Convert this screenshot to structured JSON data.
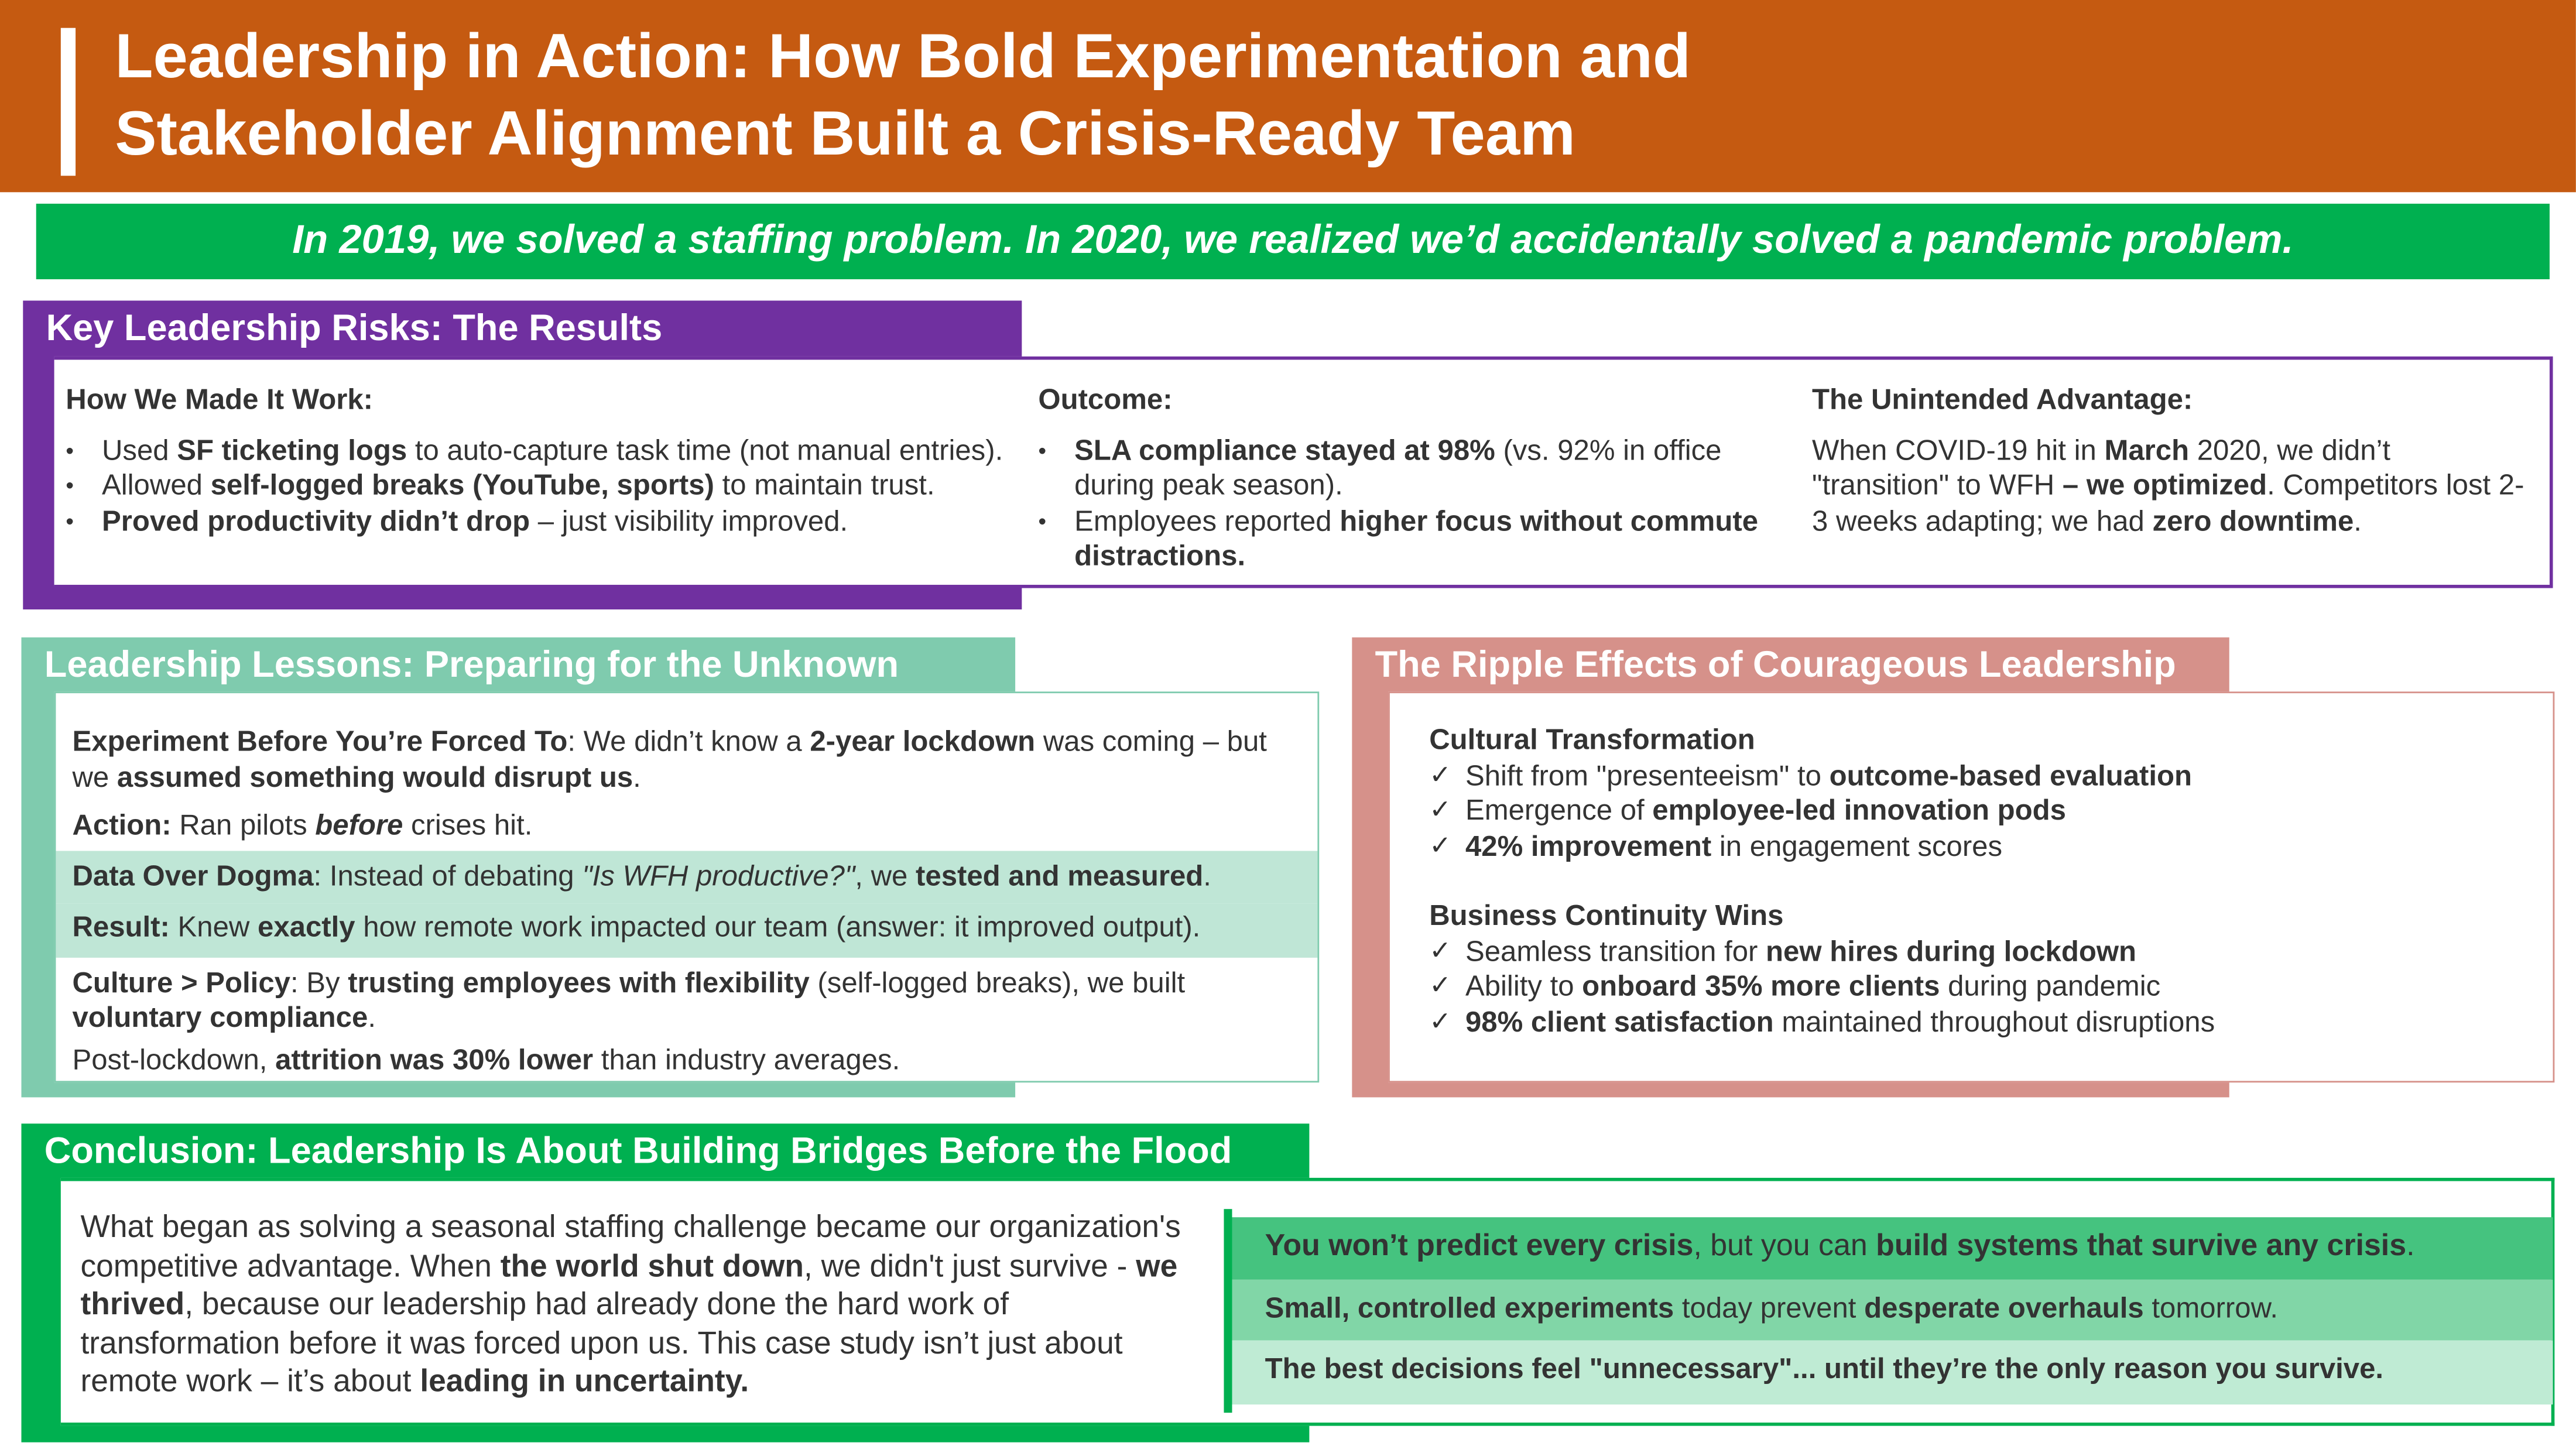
{
  "header": {
    "title_line1": "Leadership in Action: How Bold Experimentation and",
    "title_line2": "Stakeholder Alignment Built a Crisis-Ready Team"
  },
  "banner": "In 2019, we solved a staffing problem. In 2020, we realized we’d accidentally solved a pandemic problem.",
  "colors": {
    "orange": "#C55A11",
    "green": "#00B050",
    "purple": "#7030A0",
    "teal": "#7FCBAE",
    "pink": "#D6918A"
  },
  "risks": {
    "title": "Key Leadership Risks: The Results",
    "col1": {
      "heading": "How We Made It Work:",
      "items": [
        [
          [
            "Used ",
            ""
          ],
          [
            "SF ticketing logs",
            "b"
          ],
          [
            " to auto-capture task time (not manual entries).",
            ""
          ]
        ],
        [
          [
            "Allowed ",
            ""
          ],
          [
            "self-logged breaks (YouTube, sports)",
            "b"
          ],
          [
            " to maintain trust.",
            ""
          ]
        ],
        [
          [
            "Proved productivity didn’t drop",
            "b"
          ],
          [
            " – just visibility improved.",
            ""
          ]
        ]
      ]
    },
    "col2": {
      "heading": "Outcome:",
      "items": [
        [
          [
            "SLA compliance stayed at 98%",
            "b"
          ],
          [
            " (vs. 92% in office during peak season).",
            ""
          ]
        ],
        [
          [
            "Employees reported ",
            ""
          ],
          [
            "higher focus without commute distractions.",
            "b"
          ]
        ]
      ]
    },
    "col3": {
      "heading": "The Unintended Advantage:",
      "body": [
        [
          "When COVID-19 hit in ",
          ""
        ],
        [
          "March",
          "b"
        ],
        [
          " 2020, we didn’t \"transition\" to WFH ",
          ""
        ],
        [
          "– we optimized",
          "b"
        ],
        [
          ". Competitors lost 2-3 weeks adapting; we had ",
          ""
        ],
        [
          "zero downtime",
          "b"
        ],
        [
          ".",
          ""
        ]
      ]
    }
  },
  "lessons": {
    "title": "Leadership Lessons: Preparing for the Unknown",
    "rows": [
      [
        [
          "Experiment Before You’re Forced To",
          "b"
        ],
        [
          ": We didn’t know a ",
          ""
        ],
        [
          "2-year lockdown",
          "b"
        ],
        [
          " was coming – but we ",
          ""
        ],
        [
          "assumed something would disrupt us",
          "b"
        ],
        [
          ".",
          ""
        ]
      ],
      [
        [
          "Action:",
          "b"
        ],
        [
          " Ran pilots ",
          ""
        ],
        [
          "before",
          "bi"
        ],
        [
          " crises hit.",
          ""
        ]
      ],
      [
        [
          "Data Over Dogma",
          "b"
        ],
        [
          ": Instead of debating ",
          ""
        ],
        [
          "\"Is WFH productive?\"",
          "i"
        ],
        [
          ", we ",
          ""
        ],
        [
          "tested and measured",
          "b"
        ],
        [
          ".",
          ""
        ]
      ],
      [
        [
          "Result:",
          "b"
        ],
        [
          " Knew ",
          ""
        ],
        [
          "exactly",
          "b"
        ],
        [
          " how remote work impacted our team (answer: it improved output).",
          ""
        ]
      ],
      [
        [
          "Culture > Policy",
          "b"
        ],
        [
          ": By ",
          ""
        ],
        [
          "trusting employees with flexibility",
          "b"
        ],
        [
          " (self-logged breaks), we built ",
          ""
        ],
        [
          "voluntary compliance",
          "b"
        ],
        [
          ".",
          ""
        ]
      ],
      [
        [
          "Post-lockdown, ",
          ""
        ],
        [
          "attrition was 30% lower",
          "b"
        ],
        [
          " than industry averages.",
          ""
        ]
      ]
    ]
  },
  "ripple": {
    "title": "The Ripple Effects of Courageous Leadership",
    "groups": [
      {
        "heading": "Cultural Transformation",
        "items": [
          [
            [
              "Shift from \"presenteeism\" to ",
              ""
            ],
            [
              "outcome-based evaluation",
              "b"
            ]
          ],
          [
            [
              "Emergence of ",
              ""
            ],
            [
              "employee-led innovation pods",
              "b"
            ]
          ],
          [
            [
              "42% improvement",
              "b"
            ],
            [
              " in engagement scores",
              ""
            ]
          ]
        ]
      },
      {
        "heading": "Business Continuity Wins",
        "items": [
          [
            [
              "Seamless transition for ",
              ""
            ],
            [
              "new hires during lockdown",
              "b"
            ]
          ],
          [
            [
              "Ability to ",
              ""
            ],
            [
              "onboard 35% more clients",
              "b"
            ],
            [
              " during pandemic",
              ""
            ]
          ],
          [
            [
              "98% client satisfaction",
              "b"
            ],
            [
              " maintained throughout disruptions",
              ""
            ]
          ]
        ]
      }
    ]
  },
  "conclusion": {
    "title": "Conclusion: Leadership Is About Building Bridges Before the Flood",
    "body": [
      [
        "What began as solving a seasonal staffing challenge became our organization's competitive advantage. When ",
        ""
      ],
      [
        "the world shut down",
        "b"
      ],
      [
        ", we didn't just survive - ",
        ""
      ],
      [
        "we thrived",
        "b"
      ],
      [
        ", because our leadership had already done the hard work of transformation before it was forced upon us. This case study isn’t just about remote work – it’s about ",
        ""
      ],
      [
        "leading in uncertainty.",
        "b"
      ]
    ],
    "quotes": [
      [
        [
          "You won’t predict every crisis",
          "b"
        ],
        [
          ", but you can ",
          ""
        ],
        [
          "build systems that survive any crisis",
          "b"
        ],
        [
          ".",
          ""
        ]
      ],
      [
        [
          "Small, controlled experiments",
          "b"
        ],
        [
          " today prevent ",
          ""
        ],
        [
          "desperate overhauls",
          "b"
        ],
        [
          " tomorrow.",
          ""
        ]
      ],
      [
        [
          "The best decisions feel \"unnecessary\"... until they’re the only reason you survive.",
          "b"
        ]
      ]
    ]
  }
}
